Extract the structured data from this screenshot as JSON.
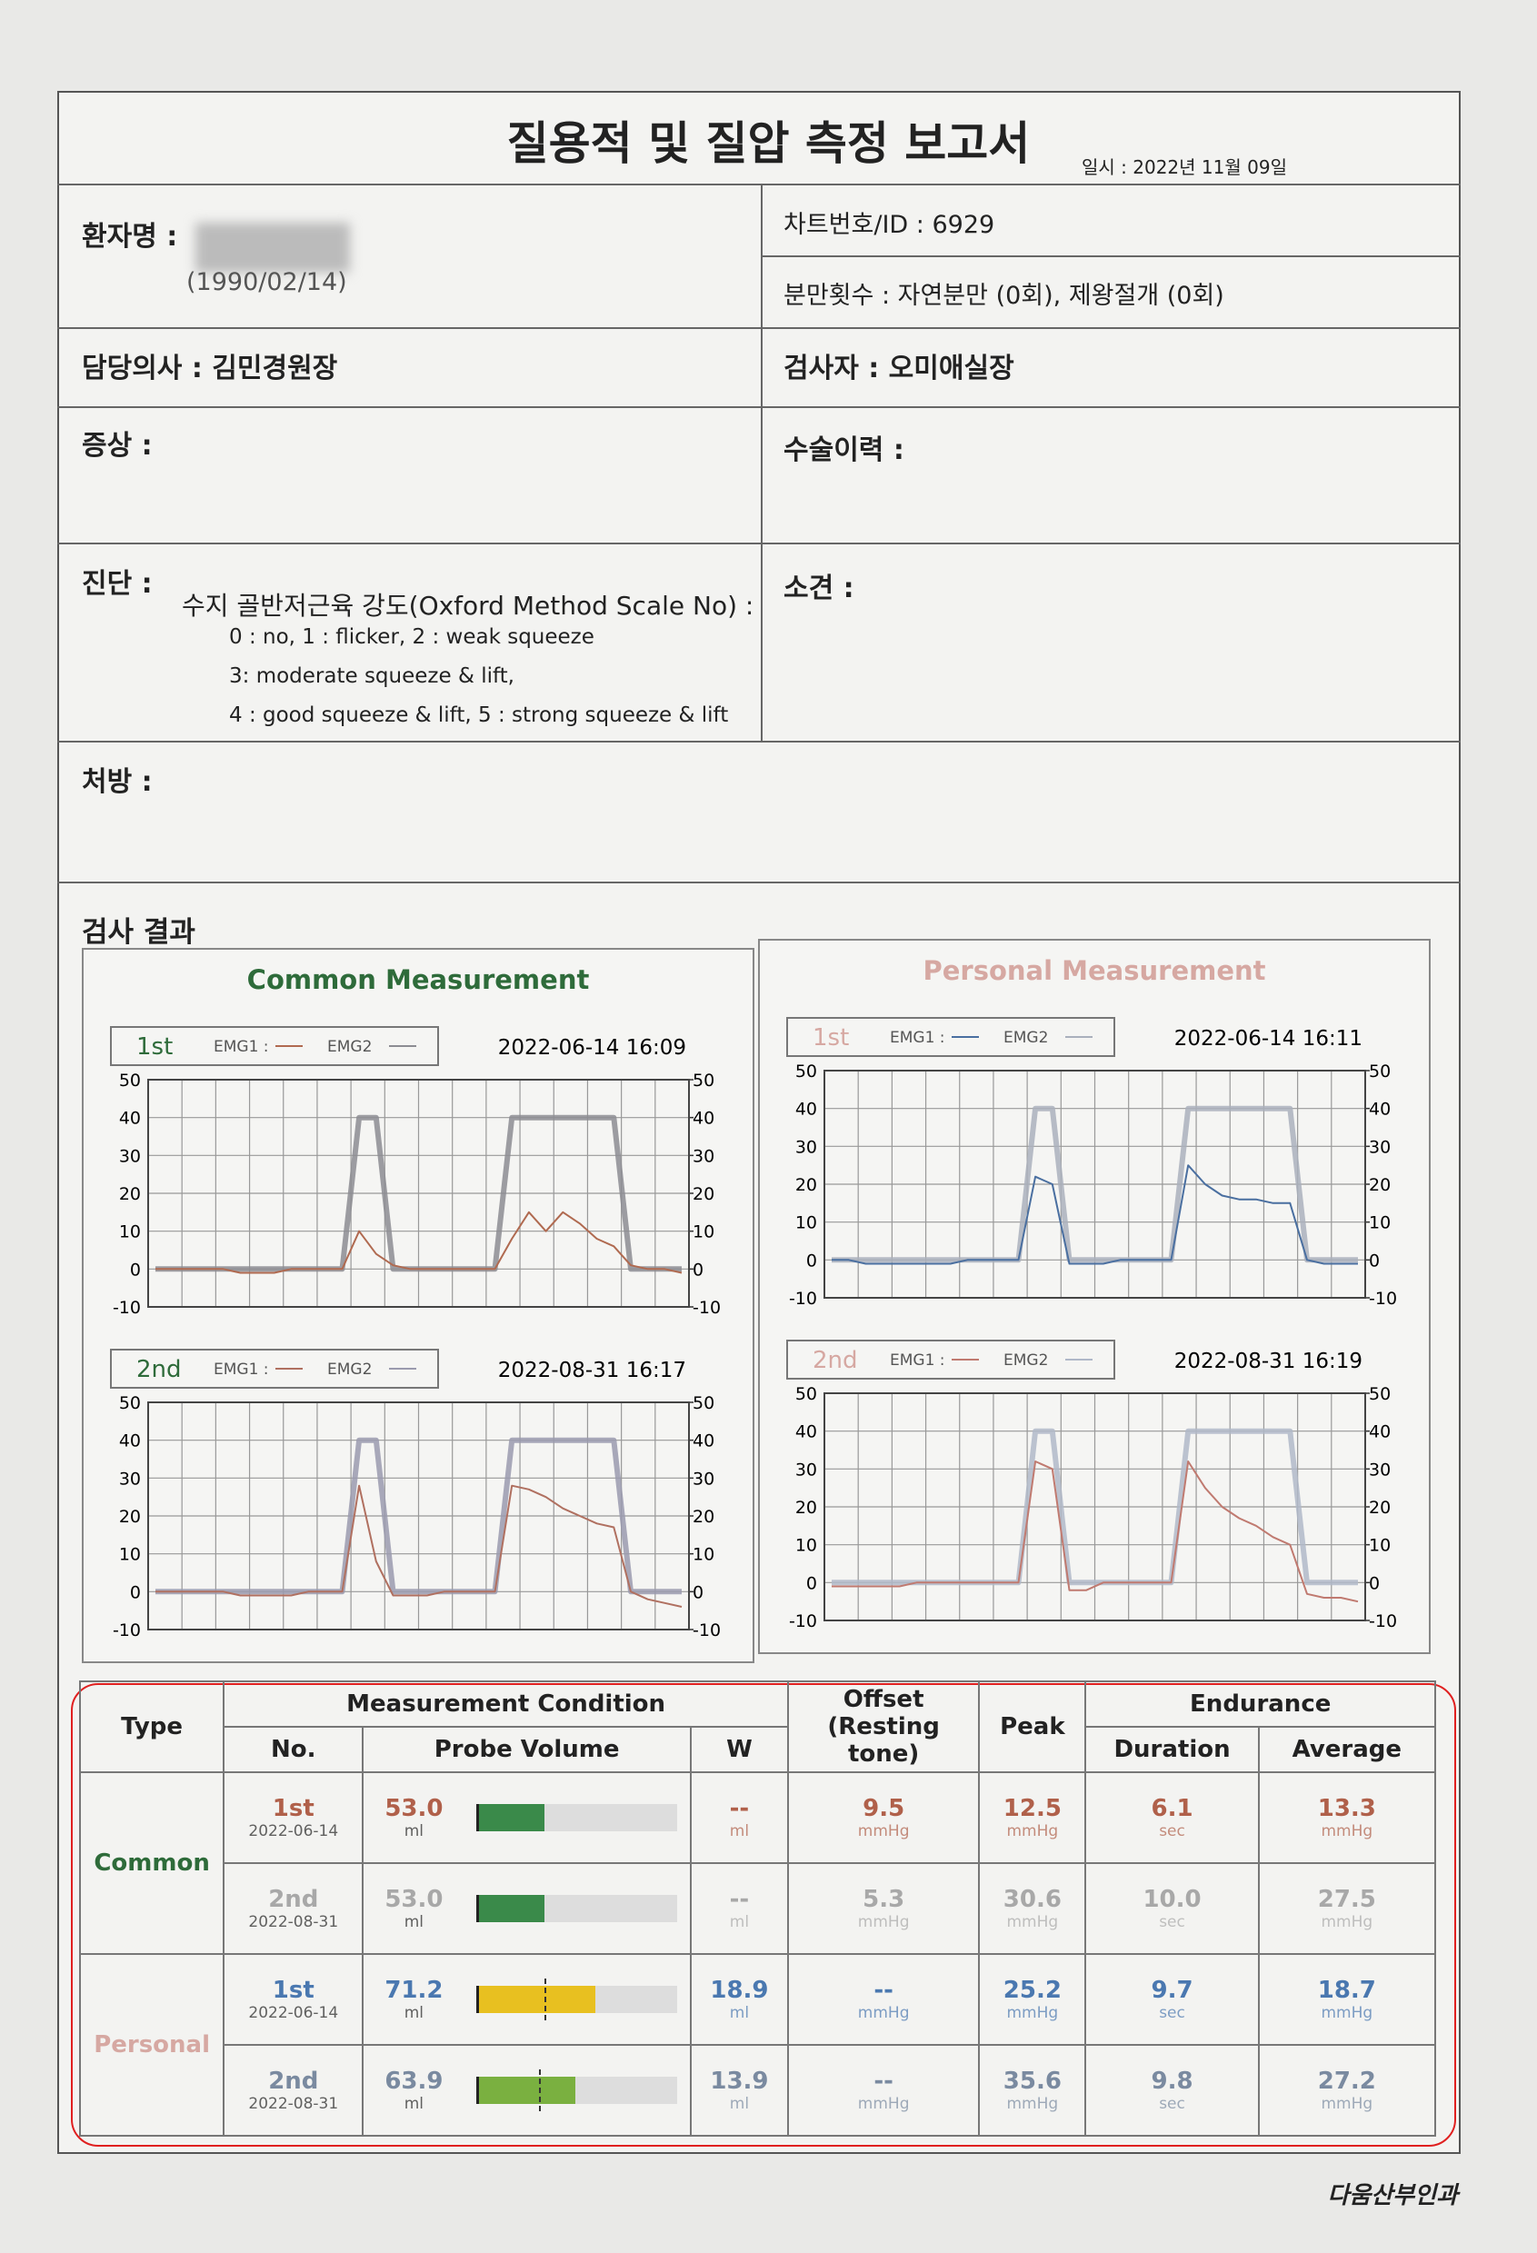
{
  "header": {
    "title": "질용적 및 질압 측정 보고서",
    "date": "일시 : 2022년 11월 09일"
  },
  "info": {
    "patient_label": "환자명 :",
    "birth_date": "(1990/02/14)",
    "chart_id": "차트번호/ID : 6929",
    "deliveries": "분만횟수 : 자연분만 (0회), 제왕절개 (0회)",
    "doctor": "담당의사 : 김민경원장",
    "examiner": "검사자 : 오미애실장",
    "symptoms": "증상 :",
    "surgery_history": "수술이력 :",
    "diagnosis": "진단 :",
    "diagnosis_lines": [
      "수지 골반저근육 강도(Oxford Method Scale No) :",
      "0 : no, 1 : flicker, 2 : weak squeeze",
      "3: moderate squeeze & lift,",
      "4 : good squeeze & lift, 5 : strong squeeze & lift"
    ],
    "opinion": "소견 :",
    "prescription": "처방 :"
  },
  "results": {
    "title": "검사 결과",
    "panels": [
      {
        "title": "Common Measurement",
        "color": "#2e6b3a"
      },
      {
        "title": "Personal Measurement",
        "color": "#d6a8a2"
      }
    ]
  },
  "chart_data": [
    {
      "type": "line",
      "label": "1st",
      "date": "2022-06-14 16:09",
      "grid": true,
      "ylim": [
        -10,
        50
      ],
      "yticks": [
        -10,
        0,
        10,
        20,
        30,
        40,
        50
      ],
      "y2lim": [
        -10,
        50
      ],
      "y2ticks": [
        -10,
        0,
        10,
        20,
        30,
        40,
        50
      ],
      "series": [
        {
          "name": "EMG1 :",
          "color": "#b06a50",
          "values": [
            0,
            0,
            0,
            0,
            0,
            -1,
            -1,
            -1,
            0,
            0,
            0,
            0,
            10,
            4,
            1,
            0,
            0,
            0,
            0,
            0,
            0,
            8,
            15,
            10,
            15,
            12,
            8,
            6,
            1,
            0,
            0,
            -1
          ]
        },
        {
          "name": "EMG2",
          "color": "#8c8c92",
          "axis": "y2",
          "values": [
            0,
            0,
            0,
            0,
            0,
            0,
            0,
            0,
            0,
            0,
            0,
            0,
            40,
            40,
            0,
            0,
            0,
            0,
            0,
            0,
            0,
            40,
            40,
            40,
            40,
            40,
            40,
            40,
            0,
            0,
            0,
            0
          ]
        }
      ]
    },
    {
      "type": "line",
      "label": "2nd",
      "date": "2022-08-31 16:17",
      "grid": true,
      "ylim": [
        -10,
        50
      ],
      "yticks": [
        -10,
        0,
        10,
        20,
        30,
        40,
        50
      ],
      "y2lim": [
        -10,
        50
      ],
      "y2ticks": [
        -10,
        0,
        10,
        20,
        30,
        40,
        50
      ],
      "series": [
        {
          "name": "EMG1 :",
          "color": "#b07060",
          "values": [
            0,
            0,
            0,
            0,
            0,
            -1,
            -1,
            -1,
            -1,
            0,
            0,
            0,
            28,
            8,
            -1,
            -1,
            -1,
            0,
            0,
            0,
            0,
            28,
            27,
            25,
            22,
            20,
            18,
            17,
            0,
            -2,
            -3,
            -4
          ]
        },
        {
          "name": "EMG2",
          "color": "#9a9aae",
          "axis": "y2",
          "values": [
            0,
            0,
            0,
            0,
            0,
            0,
            0,
            0,
            0,
            0,
            0,
            0,
            40,
            40,
            0,
            0,
            0,
            0,
            0,
            0,
            0,
            40,
            40,
            40,
            40,
            40,
            40,
            40,
            0,
            0,
            0,
            0
          ]
        }
      ]
    },
    {
      "type": "line",
      "label": "1st",
      "date": "2022-06-14 16:11",
      "grid": true,
      "ylim": [
        -10,
        50
      ],
      "yticks": [
        -10,
        0,
        10,
        20,
        30,
        40,
        50
      ],
      "y2lim": [
        -10,
        50
      ],
      "y2ticks": [
        -10,
        0,
        10,
        20,
        30,
        40,
        50
      ],
      "series": [
        {
          "name": "EMG1 :",
          "color": "#4a6fa0",
          "values": [
            0,
            0,
            -1,
            -1,
            -1,
            -1,
            -1,
            -1,
            0,
            0,
            0,
            0,
            22,
            20,
            -1,
            -1,
            -1,
            0,
            0,
            0,
            0,
            25,
            20,
            17,
            16,
            16,
            15,
            15,
            0,
            -1,
            -1,
            -1
          ]
        },
        {
          "name": "EMG2",
          "color": "#aab0bc",
          "axis": "y2",
          "values": [
            0,
            0,
            0,
            0,
            0,
            0,
            0,
            0,
            0,
            0,
            0,
            0,
            40,
            40,
            0,
            0,
            0,
            0,
            0,
            0,
            0,
            40,
            40,
            40,
            40,
            40,
            40,
            40,
            0,
            0,
            0,
            0
          ]
        }
      ]
    },
    {
      "type": "line",
      "label": "2nd",
      "date": "2022-08-31 16:19",
      "grid": true,
      "ylim": [
        -10,
        50
      ],
      "yticks": [
        -10,
        0,
        10,
        20,
        30,
        40,
        50
      ],
      "y2lim": [
        -10,
        50
      ],
      "y2ticks": [
        -10,
        0,
        10,
        20,
        30,
        40,
        50
      ],
      "series": [
        {
          "name": "EMG1 :",
          "color": "#c07a70",
          "values": [
            -1,
            -1,
            -1,
            -1,
            -1,
            0,
            0,
            0,
            0,
            0,
            0,
            0,
            32,
            30,
            -2,
            -2,
            0,
            0,
            0,
            0,
            0,
            32,
            25,
            20,
            17,
            15,
            12,
            10,
            -3,
            -4,
            -4,
            -5
          ]
        },
        {
          "name": "EMG2",
          "color": "#b0b8c8",
          "axis": "y2",
          "values": [
            0,
            0,
            0,
            0,
            0,
            0,
            0,
            0,
            0,
            0,
            0,
            0,
            40,
            40,
            0,
            0,
            0,
            0,
            0,
            0,
            0,
            40,
            40,
            40,
            40,
            40,
            40,
            40,
            0,
            0,
            0,
            0
          ]
        }
      ]
    }
  ],
  "table": {
    "headers": {
      "type": "Type",
      "condition": "Measurement Condition",
      "no": "No.",
      "probe_volume": "Probe Volume",
      "w": "W",
      "offset": "Offset (Resting tone)",
      "peak": "Peak",
      "endurance": "Endurance",
      "duration": "Duration",
      "average": "Average"
    },
    "volume_scale": [
      30,
      100
    ],
    "groups": [
      {
        "name": "Common",
        "color": "#2e6b3a",
        "rows": [
          {
            "no": "1st",
            "date": "2022-06-14",
            "volume": "53.0",
            "volume_unit": "ml",
            "bar_color": "#3a8a4a",
            "w": "--",
            "w_unit": "ml",
            "offset": "9.5",
            "offset_unit": "mmHg",
            "peak": "12.5",
            "peak_unit": "mmHg",
            "duration": "6.1",
            "duration_unit": "sec",
            "average": "13.3",
            "average_unit": "mmHg",
            "color": "#b0604a"
          },
          {
            "no": "2nd",
            "date": "2022-08-31",
            "volume": "53.0",
            "volume_unit": "ml",
            "bar_color": "#3a8a4a",
            "w": "--",
            "w_unit": "ml",
            "offset": "5.3",
            "offset_unit": "mmHg",
            "peak": "30.6",
            "peak_unit": "mmHg",
            "duration": "10.0",
            "duration_unit": "sec",
            "average": "27.5",
            "average_unit": "mmHg",
            "color": "#a8a8a8"
          }
        ]
      },
      {
        "name": "Personal",
        "color": "#d6a8a2",
        "rows": [
          {
            "no": "1st",
            "date": "2022-06-14",
            "volume": "71.2",
            "volume_unit": "ml",
            "bar_color": "#e8c020",
            "reference": 53.0,
            "w": "18.9",
            "w_unit": "ml",
            "offset": "--",
            "offset_unit": "mmHg",
            "peak": "25.2",
            "peak_unit": "mmHg",
            "duration": "9.7",
            "duration_unit": "sec",
            "average": "18.7",
            "average_unit": "mmHg",
            "color": "#4a78b0"
          },
          {
            "no": "2nd",
            "date": "2022-08-31",
            "volume": "63.9",
            "volume_unit": "ml",
            "bar_color": "#7ab040",
            "reference": 51.0,
            "w": "13.9",
            "w_unit": "ml",
            "offset": "--",
            "offset_unit": "mmHg",
            "peak": "35.6",
            "peak_unit": "mmHg",
            "duration": "9.8",
            "duration_unit": "sec",
            "average": "27.2",
            "average_unit": "mmHg",
            "color": "#7a8aa0"
          }
        ]
      }
    ]
  },
  "footer": "다움산부인과"
}
